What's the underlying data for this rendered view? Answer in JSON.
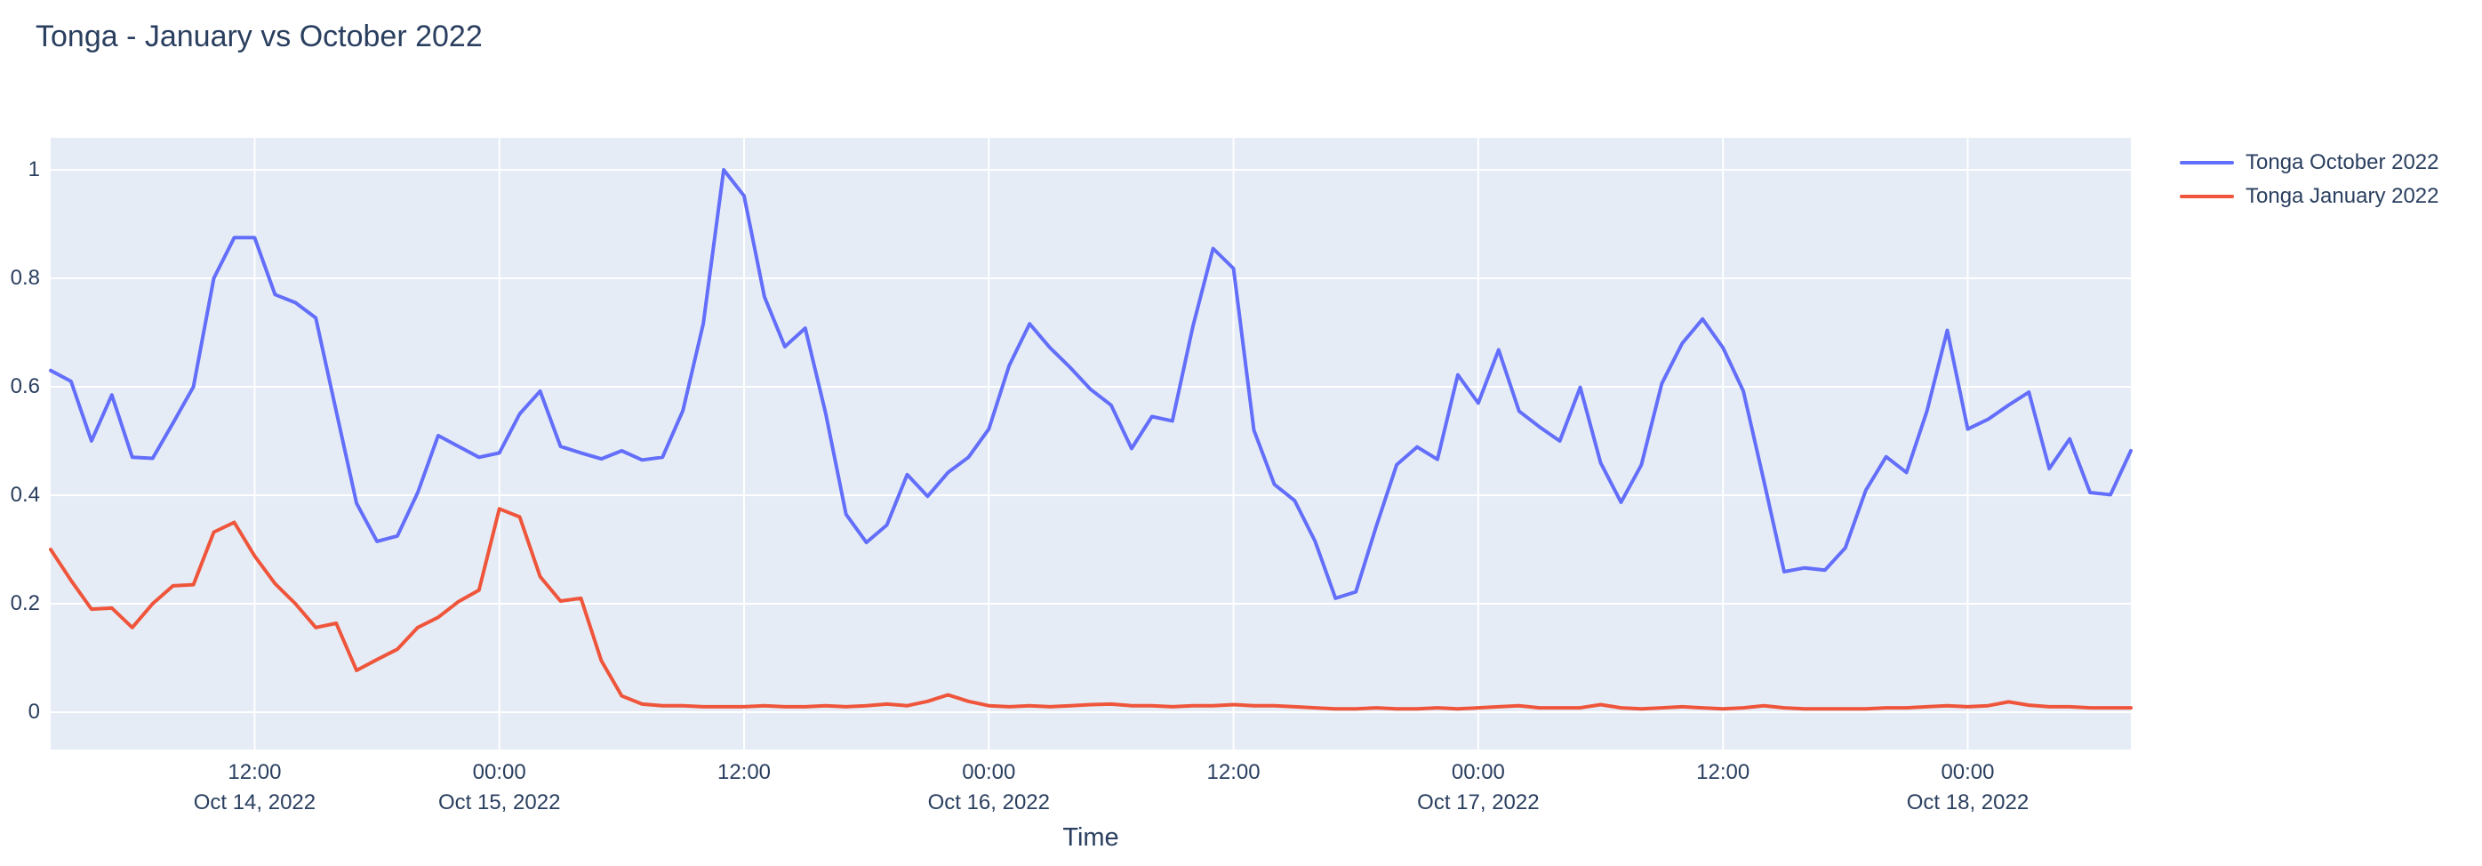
{
  "title": "Tonga - January vs October 2022",
  "styles": {
    "plot_bg": "#E5ECF6",
    "grid_color": "#FFFFFF",
    "text_color": "#2a3f5f",
    "paper_bg": "#FFFFFF"
  },
  "chart_data": {
    "type": "line",
    "title": "Tonga - January vs October 2022",
    "xlabel": "Time",
    "ylabel": "",
    "grid": true,
    "legend_position": "top-right-outside",
    "ylim": [
      0,
      1
    ],
    "y_ticks": [
      {
        "value": 0,
        "label": "0"
      },
      {
        "value": 0.2,
        "label": "0.2"
      },
      {
        "value": 0.4,
        "label": "0.4"
      },
      {
        "value": 0.6,
        "label": "0.6"
      },
      {
        "value": 0.8,
        "label": "0.8"
      },
      {
        "value": 1,
        "label": "1"
      }
    ],
    "x_start": "2022-10-14 02:00",
    "x_end": "2022-10-18 08:00",
    "x_step_hours": 1,
    "x_ticks": [
      {
        "index": 10,
        "line1": "12:00",
        "line2": "Oct 14, 2022"
      },
      {
        "index": 22,
        "line1": "00:00",
        "line2": "Oct 15, 2022"
      },
      {
        "index": 34,
        "line1": "12:00",
        "line2": ""
      },
      {
        "index": 46,
        "line1": "00:00",
        "line2": "Oct 16, 2022"
      },
      {
        "index": 58,
        "line1": "12:00",
        "line2": ""
      },
      {
        "index": 70,
        "line1": "00:00",
        "line2": "Oct 17, 2022"
      },
      {
        "index": 82,
        "line1": "12:00",
        "line2": ""
      },
      {
        "index": 94,
        "line1": "00:00",
        "line2": "Oct 18, 2022"
      }
    ],
    "series": [
      {
        "name": "Tonga October 2022",
        "color": "#636EFA",
        "values": [
          0.63,
          0.61,
          0.5,
          0.585,
          0.47,
          0.468,
          0.533,
          0.6,
          0.8,
          0.875,
          0.875,
          0.77,
          0.755,
          0.727,
          0.555,
          0.385,
          0.315,
          0.325,
          0.405,
          0.51,
          0.49,
          0.47,
          0.478,
          0.55,
          0.592,
          0.49,
          0.478,
          0.467,
          0.482,
          0.465,
          0.47,
          0.556,
          0.716,
          1.0,
          0.952,
          0.766,
          0.674,
          0.708,
          0.551,
          0.365,
          0.313,
          0.345,
          0.438,
          0.398,
          0.442,
          0.47,
          0.522,
          0.639,
          0.716,
          0.672,
          0.635,
          0.595,
          0.566,
          0.486,
          0.545,
          0.537,
          0.71,
          0.855,
          0.818,
          0.52,
          0.42,
          0.39,
          0.315,
          0.21,
          0.222,
          0.343,
          0.456,
          0.489,
          0.466,
          0.622,
          0.57,
          0.668,
          0.555,
          0.526,
          0.5,
          0.599,
          0.46,
          0.387,
          0.456,
          0.606,
          0.68,
          0.725,
          0.672,
          0.592,
          0.427,
          0.259,
          0.266,
          0.262,
          0.303,
          0.409,
          0.471,
          0.442,
          0.555,
          0.704,
          0.522,
          0.54,
          0.566,
          0.59,
          0.449,
          0.504,
          0.405,
          0.401,
          0.482
        ]
      },
      {
        "name": "Tonga January 2022",
        "color": "#EF553B",
        "values": [
          0.3,
          0.243,
          0.19,
          0.192,
          0.156,
          0.2,
          0.233,
          0.235,
          0.332,
          0.35,
          0.288,
          0.237,
          0.2,
          0.156,
          0.164,
          0.077,
          0.097,
          0.116,
          0.156,
          0.175,
          0.204,
          0.225,
          0.375,
          0.36,
          0.25,
          0.205,
          0.21,
          0.095,
          0.03,
          0.015,
          0.012,
          0.012,
          0.01,
          0.01,
          0.01,
          0.012,
          0.01,
          0.01,
          0.012,
          0.01,
          0.012,
          0.015,
          0.012,
          0.02,
          0.032,
          0.02,
          0.012,
          0.01,
          0.012,
          0.01,
          0.012,
          0.014,
          0.015,
          0.012,
          0.012,
          0.01,
          0.012,
          0.012,
          0.014,
          0.012,
          0.012,
          0.01,
          0.008,
          0.006,
          0.006,
          0.008,
          0.006,
          0.006,
          0.008,
          0.006,
          0.008,
          0.01,
          0.012,
          0.008,
          0.008,
          0.008,
          0.014,
          0.008,
          0.006,
          0.008,
          0.01,
          0.008,
          0.006,
          0.008,
          0.012,
          0.008,
          0.006,
          0.006,
          0.006,
          0.006,
          0.008,
          0.008,
          0.01,
          0.012,
          0.01,
          0.012,
          0.019,
          0.013,
          0.01,
          0.01,
          0.008,
          0.008,
          0.008
        ]
      }
    ]
  }
}
